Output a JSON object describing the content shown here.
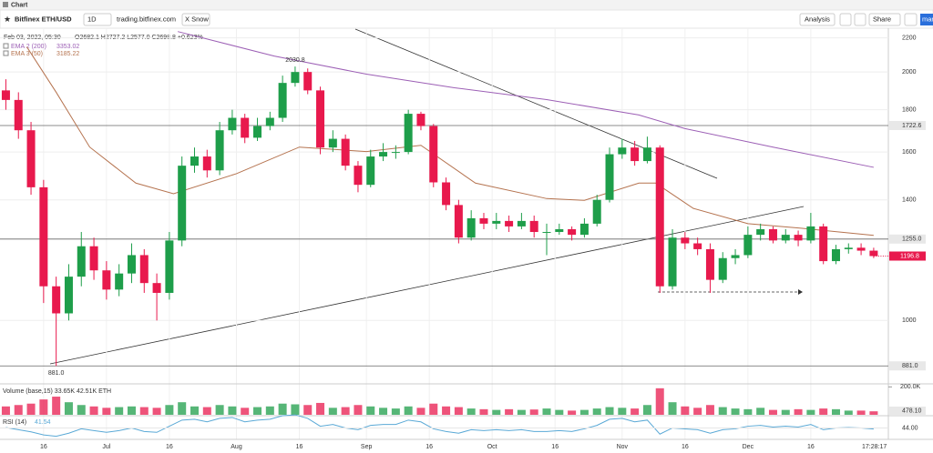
{
  "tab": "Chart",
  "toolbar": {
    "symbol": "Bitfinex ETH/USD",
    "interval": "1D",
    "source": "trading.bitfinex.com",
    "snow": "X Snow",
    "analysis": "Analysis",
    "share": "Share",
    "more": "mar"
  },
  "chart_data": {
    "type": "candlestick",
    "header": "Feb 03, 2022, 05:30",
    "ohlc_header": "O2682.1  H2727.2  L2577.0  C2698.8  +0.623%",
    "log_scale": true,
    "grid": true,
    "up_color": "#1e9e4a",
    "down_color": "#e8194d",
    "clock": "17:28:17",
    "xlim": [
      -25.4,
      186.5
    ],
    "xticks": [
      {
        "value": -15,
        "label": "16"
      },
      {
        "value": 0,
        "label": "Jul"
      },
      {
        "value": 15,
        "label": "16"
      },
      {
        "value": 31,
        "label": "Aug"
      },
      {
        "value": 46,
        "label": "16"
      },
      {
        "value": 62,
        "label": "Sep"
      },
      {
        "value": 77,
        "label": "16"
      },
      {
        "value": 92,
        "label": "Oct"
      },
      {
        "value": 107,
        "label": "16"
      },
      {
        "value": 123,
        "label": "Nov"
      },
      {
        "value": 138,
        "label": "16"
      },
      {
        "value": 153,
        "label": "Dec"
      },
      {
        "value": 168,
        "label": "16"
      }
    ],
    "ylim": [
      840,
      2260
    ],
    "yticks": [
      1000,
      1400,
      1600,
      1800,
      2000,
      2200
    ],
    "levels": [
      1722.6,
      {
        "value": 1255,
        "label": "1255.0"
      },
      {
        "value": 881,
        "label": "881.0"
      }
    ],
    "annotations": [
      {
        "value": 2030.8,
        "label": "2030.8"
      },
      {
        "value": 881,
        "label": "881.0"
      }
    ],
    "x": [
      -24,
      -21,
      -18,
      -15,
      -12,
      -9,
      -6,
      -3,
      0,
      3,
      6,
      9,
      12,
      15,
      18,
      21,
      24,
      27,
      30,
      33,
      36,
      39,
      42,
      45,
      48,
      51,
      54,
      57,
      60,
      63,
      66,
      69,
      72,
      75,
      78,
      81,
      84,
      87,
      90,
      93,
      96,
      99,
      102,
      105,
      108,
      111,
      114,
      117,
      120,
      123,
      126,
      129,
      132,
      135,
      138,
      141,
      144,
      147,
      150,
      153,
      156,
      159,
      162,
      165,
      168,
      171,
      174,
      177,
      180,
      183
    ],
    "open": [
      1900,
      1850,
      1700,
      1450,
      1100,
      1020,
      1130,
      1230,
      1150,
      1090,
      1140,
      1200,
      1110,
      1080,
      1250,
      1540,
      1580,
      1520,
      1700,
      1760,
      1665,
      1720,
      1760,
      1940,
      2000,
      1900,
      1620,
      1660,
      1540,
      1460,
      1580,
      1600,
      1600,
      1780,
      1720,
      1470,
      1380,
      1260,
      1330,
      1310,
      1320,
      1300,
      1320,
      1280,
      1280,
      1290,
      1270,
      1310,
      1400,
      1590,
      1620,
      1560,
      1620,
      1100,
      1260,
      1240,
      1220,
      1120,
      1190,
      1200,
      1270,
      1290,
      1250,
      1270,
      1250,
      1300,
      1180,
      1220,
      1225,
      1215
    ],
    "high": [
      1960,
      1890,
      1740,
      1480,
      1130,
      1170,
      1280,
      1260,
      1180,
      1170,
      1240,
      1220,
      1140,
      1280,
      1580,
      1620,
      1610,
      1740,
      1800,
      1780,
      1760,
      1790,
      1980,
      2030.8,
      2020,
      1920,
      1700,
      1680,
      1560,
      1610,
      1640,
      1630,
      1800,
      1790,
      1730,
      1490,
      1400,
      1360,
      1350,
      1350,
      1340,
      1350,
      1340,
      1310,
      1310,
      1300,
      1330,
      1420,
      1620,
      1660,
      1650,
      1670,
      1630,
      1290,
      1280,
      1260,
      1240,
      1210,
      1220,
      1300,
      1310,
      1300,
      1290,
      1285,
      1350,
      1310,
      1235,
      1240,
      1240,
      1225
    ],
    "low": [
      1800,
      1660,
      1420,
      1050,
      881,
      1000,
      1100,
      1120,
      1060,
      1070,
      1110,
      1080,
      1000,
      1060,
      1230,
      1510,
      1490,
      1500,
      1680,
      1640,
      1650,
      1700,
      1740,
      1920,
      1880,
      1590,
      1600,
      1520,
      1430,
      1450,
      1560,
      1570,
      1590,
      1700,
      1450,
      1360,
      1240,
      1250,
      1290,
      1290,
      1280,
      1290,
      1260,
      1200,
      1270,
      1250,
      1260,
      1300,
      1390,
      1570,
      1540,
      1550,
      1080,
      1090,
      1220,
      1200,
      1080,
      1110,
      1170,
      1190,
      1250,
      1240,
      1240,
      1230,
      1240,
      1170,
      1170,
      1205,
      1200,
      1190
    ],
    "close": [
      1850,
      1700,
      1450,
      1100,
      1020,
      1130,
      1230,
      1150,
      1090,
      1140,
      1200,
      1110,
      1080,
      1250,
      1540,
      1580,
      1520,
      1700,
      1760,
      1665,
      1720,
      1760,
      1940,
      2000,
      1900,
      1620,
      1660,
      1540,
      1460,
      1580,
      1600,
      1600,
      1780,
      1720,
      1470,
      1380,
      1260,
      1330,
      1310,
      1320,
      1300,
      1320,
      1280,
      1280,
      1290,
      1270,
      1310,
      1400,
      1590,
      1620,
      1560,
      1620,
      1100,
      1260,
      1240,
      1220,
      1120,
      1190,
      1200,
      1270,
      1290,
      1250,
      1270,
      1250,
      1300,
      1180,
      1220,
      1225,
      1215,
      1196.8
    ],
    "overlays": [
      {
        "name": "EMA 2 (200)",
        "legend_value": 3353.02,
        "color": "#9c5fb5",
        "x": [
          17,
          40,
          62,
          83,
          105,
          127,
          138,
          159,
          183
        ],
        "values": [
          2239,
          2091,
          1988,
          1914,
          1852,
          1774,
          1708,
          1622,
          1533
        ]
      },
      {
        "name": "EMA 3 (50)",
        "legend_value": 3185.22,
        "color": "#b5734f",
        "x": [
          -19,
          -12,
          -4,
          7,
          16,
          31,
          46,
          62,
          75,
          88,
          105,
          114,
          127,
          131,
          140,
          153,
          166,
          183
        ],
        "values": [
          2145,
          1890,
          1622,
          1467,
          1424,
          1506,
          1622,
          1602,
          1630,
          1467,
          1405,
          1398,
          1467,
          1467,
          1367,
          1310,
          1293,
          1268
        ]
      }
    ],
    "volume": {
      "label": "Volume (base,15) 33.65K 42.51K ETH",
      "last_label": "478.10",
      "ylim": [
        0,
        215000
      ],
      "yticks": [
        {
          "value": 200000,
          "label": "200.0K"
        }
      ],
      "values": [
        60000,
        70000,
        80000,
        110000,
        130000,
        90000,
        70000,
        60000,
        50000,
        55000,
        60000,
        55000,
        50000,
        70000,
        90000,
        60000,
        55000,
        70000,
        60000,
        50000,
        55000,
        60000,
        80000,
        75000,
        70000,
        85000,
        50000,
        55000,
        70000,
        60000,
        50000,
        45000,
        60000,
        50000,
        80000,
        60000,
        55000,
        45000,
        40000,
        35000,
        40000,
        35000,
        38000,
        45000,
        35000,
        30000,
        35000,
        45000,
        55000,
        50000,
        45000,
        70000,
        190000,
        90000,
        60000,
        50000,
        70000,
        55000,
        45000,
        40000,
        50000,
        35000,
        35000,
        40000,
        35000,
        45000,
        40000,
        30000,
        30000,
        25000
      ]
    },
    "rsi": {
      "label": "RSI (14)",
      "last": 41.54,
      "color": "#5aa9d6",
      "ylim": [
        20,
        70
      ],
      "yticks": [
        {
          "value": 44,
          "label": "44.00"
        }
      ],
      "values": [
        45,
        40,
        35,
        28,
        25,
        32,
        42,
        38,
        34,
        38,
        44,
        36,
        34,
        48,
        62,
        64,
        58,
        66,
        68,
        58,
        62,
        64,
        72,
        74,
        66,
        48,
        52,
        44,
        40,
        50,
        52,
        52,
        62,
        58,
        42,
        36,
        32,
        40,
        38,
        40,
        38,
        40,
        36,
        36,
        38,
        36,
        42,
        50,
        64,
        66,
        58,
        62,
        30,
        44,
        42,
        40,
        32,
        40,
        42,
        48,
        50,
        46,
        48,
        46,
        52,
        40,
        44,
        45,
        44,
        41.54
      ]
    }
  }
}
